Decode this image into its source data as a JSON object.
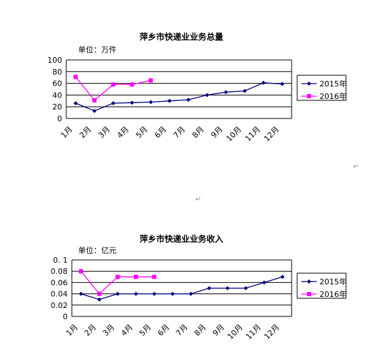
{
  "colors": {
    "series2015": "#000080",
    "series2016": "#ff00ff",
    "grid": "#000000"
  },
  "charts": [
    {
      "title": "萍乡市快递业业务总量",
      "unit": "单位：万件",
      "chart_data": {
        "type": "line",
        "title": "萍乡市快递业业务总量",
        "categories": [
          "1月",
          "2月",
          "3月",
          "4月",
          "5月",
          "6月",
          "7月",
          "8月",
          "9月",
          "10月",
          "11月",
          "12月"
        ],
        "ylim": [
          0,
          100
        ],
        "yticks": [
          "0",
          "20",
          "40",
          "60",
          "80",
          "100"
        ],
        "grid": true,
        "legend": "right",
        "series": [
          {
            "name": "2015年",
            "marker": "diamond",
            "color": "#000080",
            "values": [
              26,
              13,
              26,
              27,
              28,
              30,
              32,
              40,
              45,
              47,
              61,
              59
            ]
          },
          {
            "name": "2016年",
            "marker": "square",
            "color": "#ff00ff",
            "values": [
              71,
              31,
              58,
              58,
              65,
              null,
              null,
              null,
              null,
              null,
              null,
              null
            ]
          }
        ]
      }
    },
    {
      "title": "萍乡市快递业业务收入",
      "unit": "单位：亿元",
      "chart_data": {
        "type": "line",
        "title": "萍乡市快递业业务收入",
        "categories": [
          "1月",
          "2月",
          "3月",
          "4月",
          "5月",
          "6月",
          "7月",
          "8月",
          "9月",
          "10月",
          "11月",
          "12月"
        ],
        "ylim": [
          0,
          0.1
        ],
        "yticks": [
          "0",
          "0.02",
          "0.04",
          "0.06",
          "0.08",
          "0. 1"
        ],
        "grid": true,
        "legend": "right",
        "series": [
          {
            "name": "2015年",
            "marker": "diamond",
            "color": "#000080",
            "values": [
              0.04,
              0.03,
              0.04,
              0.04,
              0.04,
              0.04,
              0.04,
              0.05,
              0.05,
              0.05,
              0.06,
              0.07
            ]
          },
          {
            "name": "2016年",
            "marker": "square",
            "color": "#ff00ff",
            "values": [
              0.08,
              0.04,
              0.07,
              0.07,
              0.07,
              null,
              null,
              null,
              null,
              null,
              null,
              null
            ]
          }
        ]
      }
    }
  ],
  "marks": {
    "return_symbol": "↵"
  }
}
